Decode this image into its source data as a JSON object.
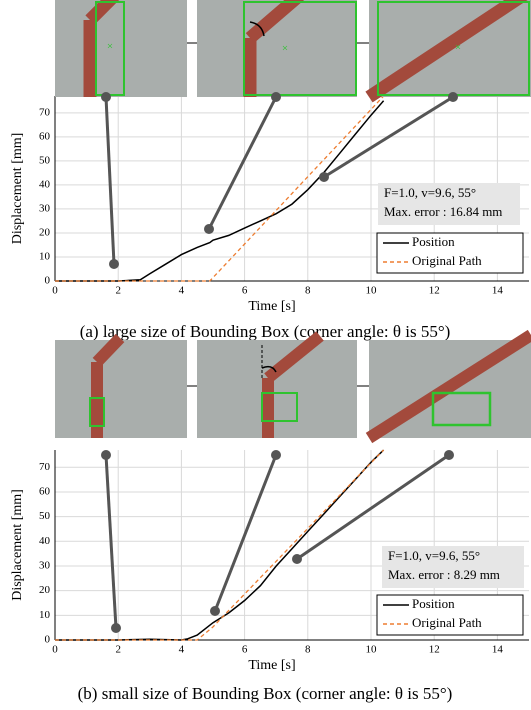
{
  "chart_data": [
    {
      "type": "line",
      "caption": "(a) large size of Bounding Box (corner angle: θ is 55°)",
      "x_label": "Time [s]",
      "y_label": "Displacement [mm]",
      "annotation": [
        "F=1.0, v=9.6, 55°",
        "Max. error : 16.84 mm"
      ],
      "x": [
        0,
        1,
        2,
        2.7,
        3,
        3.5,
        4,
        4.5,
        4.9,
        5,
        5.5,
        6,
        6.5,
        7,
        7.5,
        8,
        8.5,
        9,
        9.5,
        10,
        10.4
      ],
      "series": [
        {
          "name": "Position",
          "color": "#000000",
          "dash": false,
          "values": [
            0,
            0,
            0,
            0.5,
            3,
            7,
            11,
            14,
            16,
            17,
            19,
            22,
            25,
            28,
            32,
            38,
            45,
            53,
            61,
            69,
            75
          ]
        },
        {
          "name": "Original Path",
          "color": "#ed7d31",
          "dash": true,
          "values": [
            0,
            0,
            0,
            0,
            0,
            0,
            0,
            0,
            0,
            1.4,
            8.4,
            15.4,
            22.4,
            29.4,
            36.4,
            43.4,
            50.4,
            57.4,
            64.4,
            71.4,
            77
          ]
        }
      ],
      "xlim": [
        0,
        15
      ],
      "xticks": [
        0,
        2,
        4,
        6,
        8,
        10,
        12,
        14
      ],
      "ylim": [
        0,
        77
      ],
      "yticks": [
        0,
        10,
        20,
        30,
        40,
        50,
        60,
        70
      ],
      "grid": true,
      "legend": "lower right"
    },
    {
      "type": "line",
      "caption": "(b) small size of Bounding Box (corner angle: θ is 55°)",
      "x_label": "Time [s]",
      "y_label": "Displacement [mm]",
      "annotation": [
        "F=1.0, v=9.6, 55°",
        "Max. error : 8.29 mm"
      ],
      "x": [
        0,
        1,
        2,
        3,
        4,
        4.2,
        4.5,
        5,
        5.5,
        6,
        6.5,
        7,
        7.5,
        8,
        8.5,
        9,
        9.5,
        10,
        10.4
      ],
      "series": [
        {
          "name": "Position",
          "color": "#000000",
          "dash": false,
          "values": [
            0,
            0,
            0,
            0.3,
            0,
            0.5,
            2,
            7,
            11,
            16,
            22,
            30,
            37,
            44,
            51,
            58,
            65,
            72,
            77
          ]
        },
        {
          "name": "Original Path",
          "color": "#ed7d31",
          "dash": true,
          "values": [
            0,
            0,
            0,
            0,
            0,
            0,
            0,
            5.3,
            12,
            18.6,
            25.3,
            31.9,
            38.6,
            45.2,
            51.9,
            58.5,
            65.2,
            71.8,
            77
          ]
        }
      ],
      "xlim": [
        0,
        15
      ],
      "xticks": [
        0,
        2,
        4,
        6,
        8,
        10,
        12,
        14
      ],
      "ylim": [
        0,
        77
      ],
      "yticks": [
        0,
        10,
        20,
        30,
        40,
        50,
        60,
        70
      ],
      "grid": true,
      "legend": "lower right"
    }
  ]
}
